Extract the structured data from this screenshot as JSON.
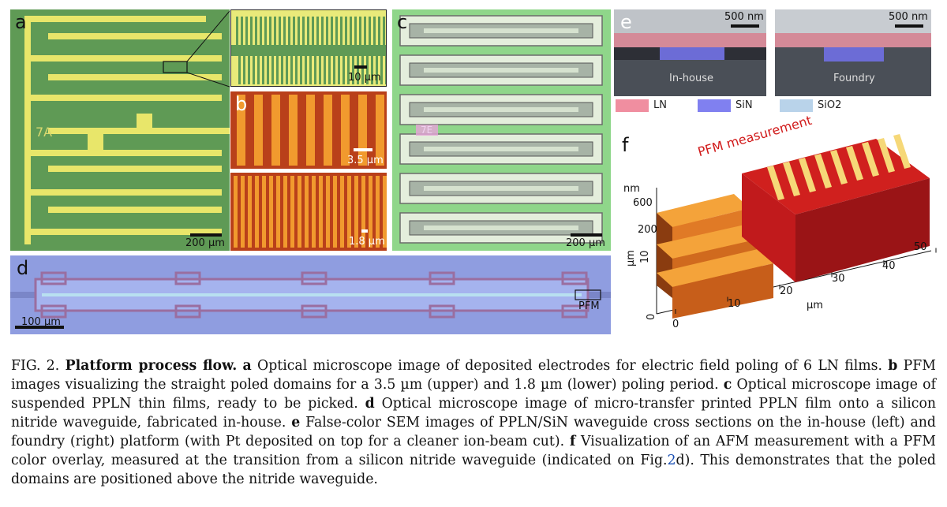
{
  "colors": {
    "panel_a_bg": "#5f9a55",
    "electrode": "#e8e66a",
    "pfm_orange": "#f19a2e",
    "pfm_dark": "#b9401a",
    "panel_c_bg": "#8fd68a",
    "panel_d_bg": "#8f9de0",
    "ln_pink": "#f08ea0",
    "sin_blue": "#8080f0",
    "sio2_light": "#b9d3ea",
    "pfm_red": "#c81e20"
  },
  "panels": {
    "a": {
      "label": "a",
      "electrode_label": "7A",
      "scale": "200 µm"
    },
    "a_zoom": {
      "scale": "10 µm"
    },
    "b": {
      "label": "b",
      "scale_upper": "3.5 µm",
      "scale_lower": "1.8 µm"
    },
    "c": {
      "label": "c",
      "film_label": "7E",
      "scale": "200 µm"
    },
    "d": {
      "label": "d",
      "scale": "100 µm",
      "pfm_box": "PFM"
    },
    "e": {
      "label": "e",
      "scale_left": "500 nm",
      "scale_right": "500 nm",
      "left_tag": "In-house",
      "right_tag": "Foundry",
      "legend": [
        "LN",
        "SiN",
        "SiO2"
      ]
    },
    "f": {
      "label": "f",
      "title": "PFM measurement",
      "z_unit": "nm",
      "z_ticks": [
        "600",
        "200"
      ],
      "y_unit": "µm",
      "y_ticks": [
        "0",
        "10"
      ],
      "x_unit": "µm",
      "x_ticks": [
        "0",
        "10",
        "20",
        "30",
        "40",
        "50"
      ]
    }
  },
  "caption": {
    "fig": "FIG. 2.",
    "title": "Platform process flow.",
    "a_key": "a",
    "a_text": " Optical microscope image of deposited electrodes for electric field poling of 6 LN films. ",
    "b_key": "b",
    "b_text": " PFM images visualizing the straight poled domains for a 3.5 µm (upper) and 1.8 µm (lower) poling period. ",
    "c_key": "c",
    "c_text": " Optical microscope image of suspended PPLN thin films, ready to be picked. ",
    "d_key": "d",
    "d_text": " Optical microscope image of micro-transfer printed PPLN film onto a silicon nitride waveguide, fabricated in-house. ",
    "e_key": "e",
    "e_text": " False-color SEM images of PPLN/SiN waveguide cross sections on the in-house (left) and foundry (right) platform (with Pt deposited on top for a cleaner ion-beam cut). ",
    "f_key": "f",
    "f_text": " Visualization of an AFM measurement with a PFM color overlay, measured at the transition from a silicon nitride waveguide (indicated on Fig.",
    "f_ref": "2",
    "f_end": "d). This demonstrates that the poled domains are positioned above the nitride waveguide."
  }
}
